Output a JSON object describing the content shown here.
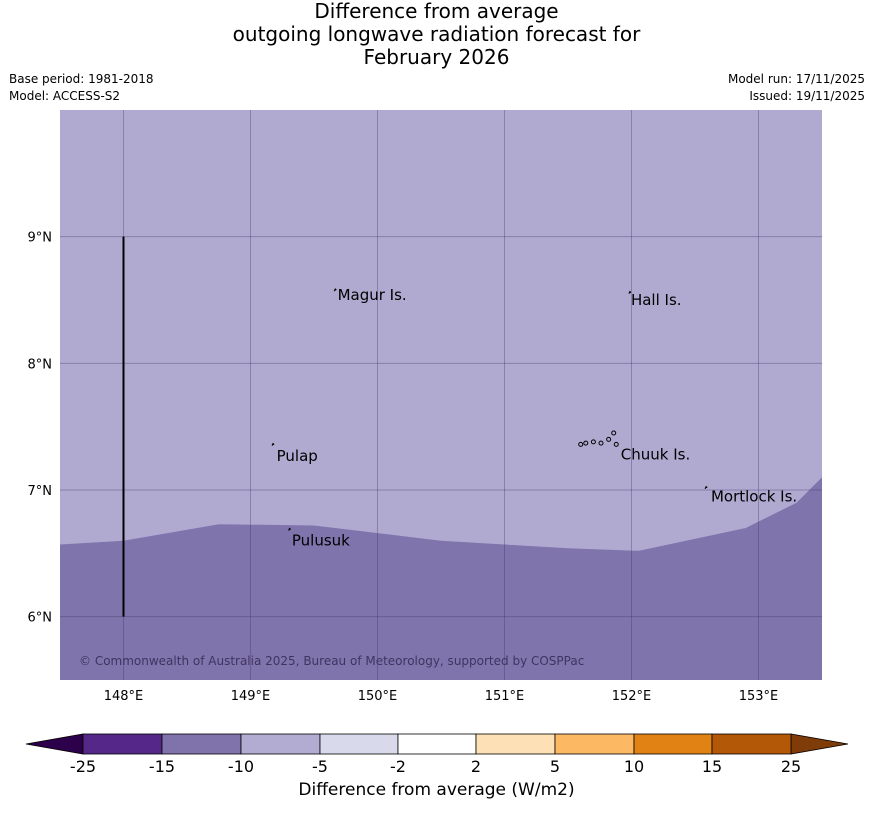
{
  "title_lines": [
    "Difference from average",
    "outgoing longwave radiation forecast for",
    "February 2026"
  ],
  "meta": {
    "base_period": "Base period: 1981-2018",
    "model": "Model: ACCESS-S2",
    "model_run": "Model run: 17/11/2025",
    "issued": "Issued: 19/11/2025"
  },
  "map": {
    "lon_range": [
      147.5,
      153.5
    ],
    "lat_range": [
      5.5,
      10.0
    ],
    "lon_ticks": [
      148,
      149,
      150,
      151,
      152,
      153
    ],
    "lon_tick_labels": [
      "148°E",
      "149°E",
      "150°E",
      "151°E",
      "152°E",
      "153°E"
    ],
    "lat_ticks": [
      6,
      7,
      8,
      9
    ],
    "lat_tick_labels": [
      "6°N",
      "7°N",
      "8°N",
      "9°N"
    ],
    "fill_upper_color": "#b0aad1",
    "fill_lower_color": "#8074ad",
    "boundary_lat_profile": [
      [
        147.5,
        6.57
      ],
      [
        148.0,
        6.6
      ],
      [
        148.75,
        6.73
      ],
      [
        149.5,
        6.72
      ],
      [
        150.5,
        6.6
      ],
      [
        151.5,
        6.54
      ],
      [
        152.06,
        6.52
      ],
      [
        152.9,
        6.7
      ],
      [
        153.3,
        6.9
      ],
      [
        153.5,
        7.1
      ]
    ],
    "labels": [
      {
        "text": "Magur Is.",
        "lon": 149.67,
        "lat": 8.54
      },
      {
        "text": "Hall Is.",
        "lon": 151.98,
        "lat": 8.5
      },
      {
        "text": "Pulap",
        "lon": 149.19,
        "lat": 7.27
      },
      {
        "text": "Chuuk Is.",
        "lon": 151.9,
        "lat": 7.28
      },
      {
        "text": "Mortlock Is.",
        "lon": 152.61,
        "lat": 6.95
      },
      {
        "text": "Pulusuk",
        "lon": 149.31,
        "lat": 6.6
      }
    ],
    "vertical_line": {
      "lon": 148.0,
      "lat_from": 6.0,
      "lat_to": 9.0
    },
    "copyright": "© Commonwealth of Australia 2025, Bureau of Meteorology, supported by COSPPac"
  },
  "colorbar": {
    "tick_labels": [
      "-25",
      "-15",
      "-10",
      "-5",
      "-2",
      "2",
      "5",
      "10",
      "15",
      "25"
    ],
    "segment_colors": [
      "#542788",
      "#8073ac",
      "#b2abd2",
      "#d8daeb",
      "#ffffff",
      "#fee0b6",
      "#fdb863",
      "#e08214",
      "#b35806"
    ],
    "under_color": "#2d004b",
    "over_color": "#7f3b08",
    "label": "Difference from average (W/m2)"
  }
}
